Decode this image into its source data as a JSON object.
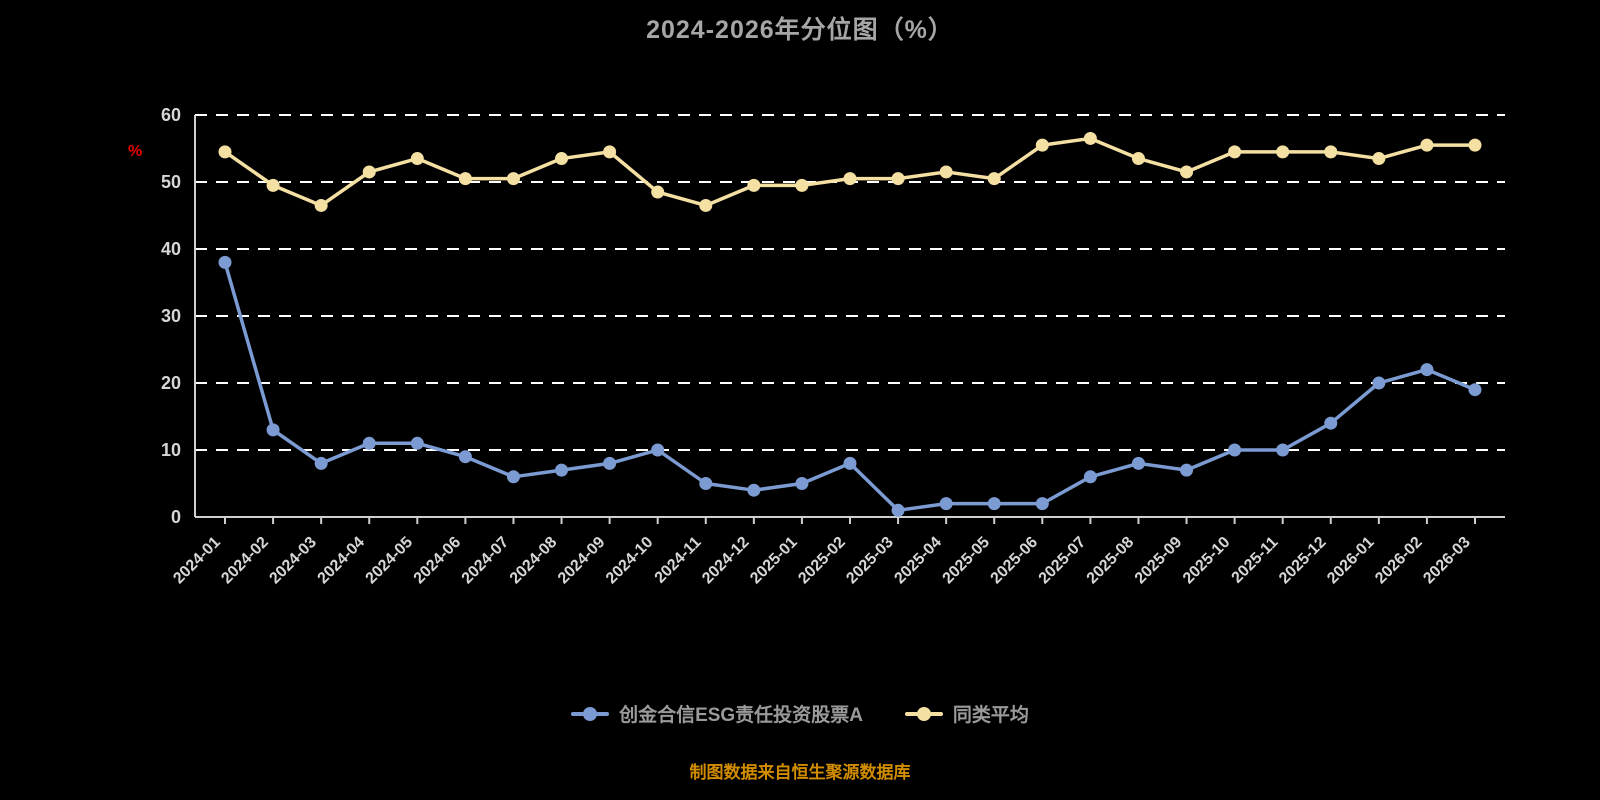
{
  "page": {
    "title": "2024-2026年分位图（%）",
    "footer": "制图数据来自恒生聚源数据库"
  },
  "colors": {
    "background": "#000000",
    "title": "#a6a6a6",
    "footer": "#d18c00",
    "ylabel": "#e60000",
    "grid": "#ffffff",
    "axis": "#cfcfcf",
    "axis_text": "#d6d6d6",
    "legend_text": "#9a9a9a"
  },
  "chart_data": {
    "type": "line",
    "title": "2024-2026年分位图（%）",
    "xlabel": "",
    "ylabel": "%",
    "ylim": [
      0,
      60
    ],
    "yticks": [
      0,
      10,
      20,
      30,
      40,
      50,
      60
    ],
    "grid": "horizontal-dashed",
    "legend_position": "bottom",
    "categories": [
      "2024-01",
      "2024-02",
      "2024-03",
      "2024-04",
      "2024-05",
      "2024-06",
      "2024-07",
      "2024-08",
      "2024-09",
      "2024-10",
      "2024-11",
      "2024-12",
      "2025-01",
      "2025-02",
      "2025-03",
      "2025-04",
      "2025-05",
      "2025-06",
      "2025-07",
      "2025-08",
      "2025-09",
      "2025-10",
      "2025-11",
      "2025-12",
      "2026-01",
      "2026-02",
      "2026-03"
    ],
    "series": [
      {
        "name": "创金合信ESG责任投资股票A",
        "color": "#7b9bd2",
        "values": [
          38,
          13,
          8,
          11,
          11,
          9,
          6,
          7,
          8,
          10,
          5,
          4,
          5,
          8,
          1,
          2,
          2,
          2,
          6,
          8,
          7,
          10,
          10,
          14,
          20,
          22,
          19
        ]
      },
      {
        "name": "同类平均",
        "color": "#f5e0a3",
        "values": [
          54.5,
          49.5,
          46.5,
          51.5,
          53.5,
          50.5,
          50.5,
          53.5,
          54.5,
          48.5,
          46.5,
          49.5,
          49.5,
          50.5,
          50.5,
          51.5,
          50.5,
          55.5,
          56.5,
          53.5,
          51.5,
          54.5,
          54.5,
          54.5,
          53.5,
          55.5,
          55.5
        ]
      }
    ]
  }
}
